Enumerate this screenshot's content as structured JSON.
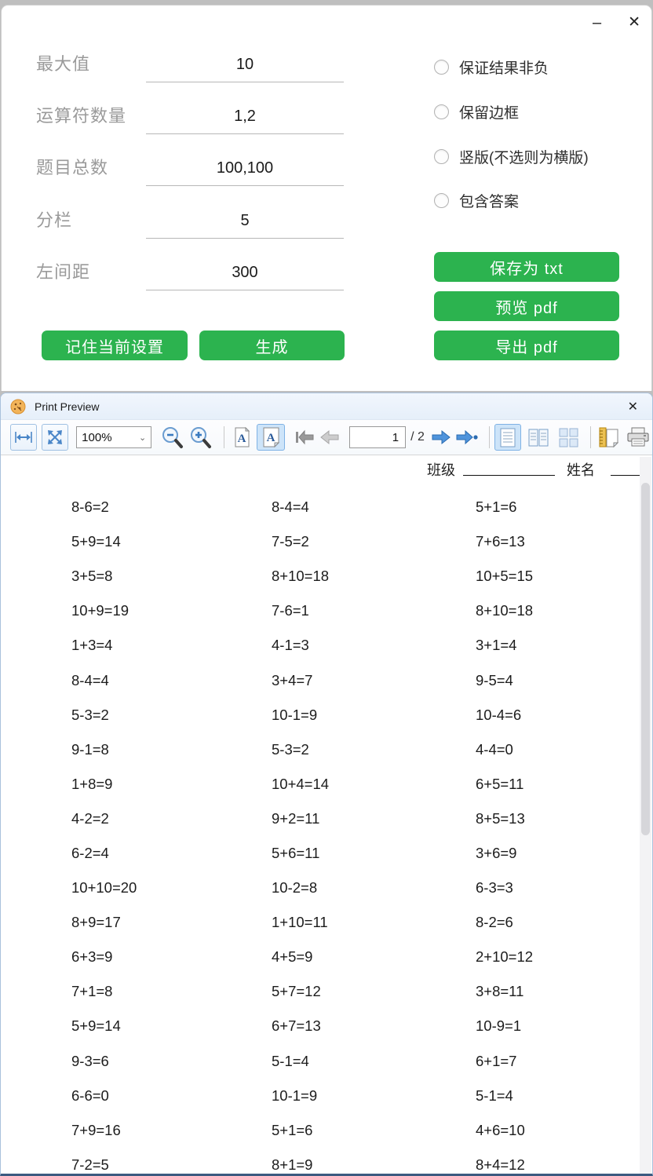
{
  "generator": {
    "titlebar": {
      "minimize": "–",
      "close": "✕"
    },
    "fields": [
      {
        "label": "最大值",
        "value": "10"
      },
      {
        "label": "运算符数量",
        "value": "1,2"
      },
      {
        "label": "题目总数",
        "value": "100,100"
      },
      {
        "label": "分栏",
        "value": "5"
      },
      {
        "label": "左间距",
        "value": "300"
      }
    ],
    "options": [
      {
        "label": "保证结果非负",
        "checked": false
      },
      {
        "label": "保留边框",
        "checked": false
      },
      {
        "label": "竖版(不选则为横版)",
        "checked": false
      },
      {
        "label": "包含答案",
        "checked": false
      }
    ],
    "buttons": {
      "save_txt": "保存为 txt",
      "preview_pdf": "预览 pdf",
      "export_pdf": "导出 pdf",
      "remember": "记住当前设置",
      "generate": "生成"
    },
    "accent_green": "#2cb34f"
  },
  "preview": {
    "title": "Print Preview",
    "close": "✕",
    "toolbar": {
      "zoom_level": "100%",
      "page_number": "1",
      "page_total": "/ 2",
      "selected_bg": "#cde4f9",
      "arrow_blue": "#4a90d9"
    },
    "worksheet": {
      "class_label": "班级",
      "name_label": "姓名",
      "columns": [
        [
          "8-6=2",
          "5+9=14",
          "3+5=8",
          "10+9=19",
          "1+3=4",
          "8-4=4",
          "5-3=2",
          "9-1=8",
          "1+8=9",
          "4-2=2",
          "6-2=4",
          "10+10=20",
          "8+9=17",
          "6+3=9",
          "7+1=8",
          "5+9=14",
          "9-3=6",
          "6-6=0",
          "7+9=16",
          "7-2=5"
        ],
        [
          "8-4=4",
          "7-5=2",
          "8+10=18",
          "7-6=1",
          "4-1=3",
          "3+4=7",
          "10-1=9",
          "5-3=2",
          "10+4=14",
          "9+2=11",
          "5+6=11",
          "10-2=8",
          "1+10=11",
          "4+5=9",
          "5+7=12",
          "6+7=13",
          "5-1=4",
          "10-1=9",
          "5+1=6",
          "8+1=9"
        ],
        [
          "5+1=6",
          "7+6=13",
          "10+5=15",
          "8+10=18",
          "3+1=4",
          "9-5=4",
          "10-4=6",
          "4-4=0",
          "6+5=11",
          "8+5=13",
          "3+6=9",
          "6-3=3",
          "8-2=6",
          "2+10=12",
          "3+8=11",
          "10-9=1",
          "6+1=7",
          "5-1=4",
          "4+6=10",
          "8+4=12"
        ]
      ]
    }
  }
}
